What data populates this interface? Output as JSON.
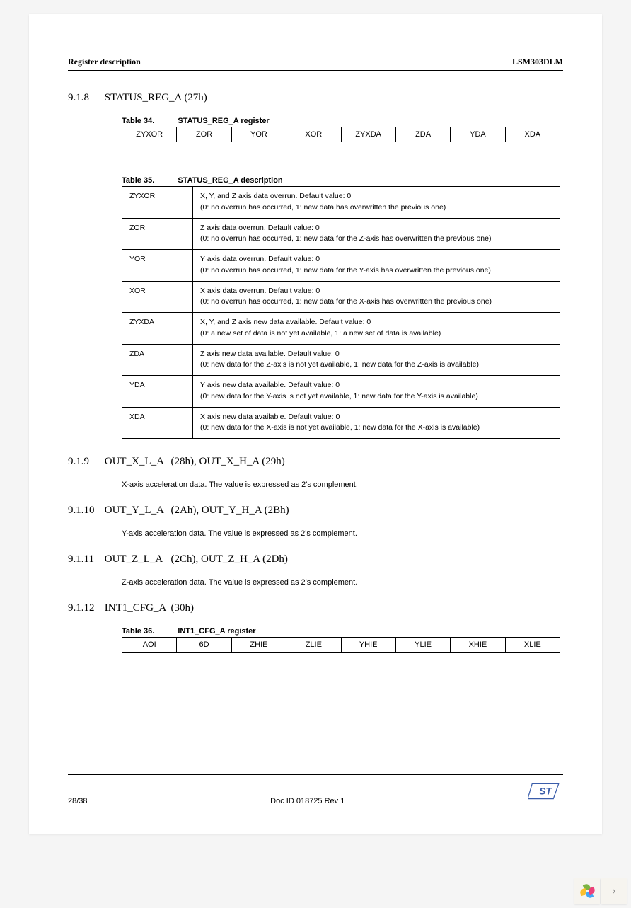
{
  "header": {
    "left": "Register description",
    "right": "LSM303DLM"
  },
  "s918": {
    "num": "9.1.8",
    "title": "STATUS_REG_A (27h)",
    "table34": {
      "label": "Table 34.",
      "caption": "STATUS_REG_A register",
      "bits": [
        "ZYXOR",
        "ZOR",
        "YOR",
        "XOR",
        "ZYXDA",
        "ZDA",
        "YDA",
        "XDA"
      ]
    },
    "table35": {
      "label": "Table 35.",
      "caption": "STATUS_REG_A description",
      "rows": [
        {
          "f": "ZYXOR",
          "d": "X, Y, and Z axis data overrun. Default value: 0\n(0: no overrun has occurred, 1: new data has overwritten the previous one)"
        },
        {
          "f": "ZOR",
          "d": "Z axis data overrun. Default value: 0\n(0: no overrun has occurred, 1: new data for the Z-axis has overwritten the previous one)"
        },
        {
          "f": "YOR",
          "d": "Y axis data overrun. Default value: 0\n(0: no overrun has occurred, 1: new data for the Y-axis has overwritten the previous one)"
        },
        {
          "f": "XOR",
          "d": "X axis data overrun. Default value: 0\n(0: no overrun has occurred, 1: new data for the X-axis has overwritten the previous one)"
        },
        {
          "f": "ZYXDA",
          "d": "X, Y, and Z axis new data available. Default value: 0\n(0: a new set of data is not yet available, 1: a new set of data is available)"
        },
        {
          "f": "ZDA",
          "d": "Z axis new data available. Default value: 0\n(0: new data for the Z-axis is not yet available, 1: new data for the Z-axis is available)"
        },
        {
          "f": "YDA",
          "d": "Y axis new data available. Default value: 0\n(0: new data for the Y-axis is not yet available, 1: new data for the Y-axis is available)"
        },
        {
          "f": "XDA",
          "d": "X axis new data available. Default value: 0\n(0: new data for the X-axis is not yet available, 1: new data for the X-axis is available)"
        }
      ]
    }
  },
  "s919": {
    "num": "9.1.9",
    "name": "OUT_X_L_A",
    "addr": "(28h), OUT_X_H_A (29h)",
    "text": "X-axis acceleration data. The value is expressed as 2's complement."
  },
  "s9110": {
    "num": "9.1.10",
    "name": "OUT_Y_L_A",
    "addr": "(2Ah), OUT_Y_H_A (2Bh)",
    "text": "Y-axis acceleration data. The value is expressed as 2's complement."
  },
  "s9111": {
    "num": "9.1.11",
    "name": "OUT_Z_L_A",
    "addr": "(2Ch), OUT_Z_H_A (2Dh)",
    "text": "Z-axis acceleration data. The value is expressed as 2's complement."
  },
  "s9112": {
    "num": "9.1.12",
    "name": "INT1_CFG_A",
    "addr": "(30h)",
    "table36": {
      "label": "Table 36.",
      "caption": "INT1_CFG_A register",
      "bits": [
        "AOI",
        "6D",
        "ZHIE",
        "ZLIE",
        "YHIE",
        "YLIE",
        "XHIE",
        "XLIE"
      ]
    }
  },
  "footer": {
    "page": "28/38",
    "docid": "Doc ID 018725 Rev 1"
  }
}
